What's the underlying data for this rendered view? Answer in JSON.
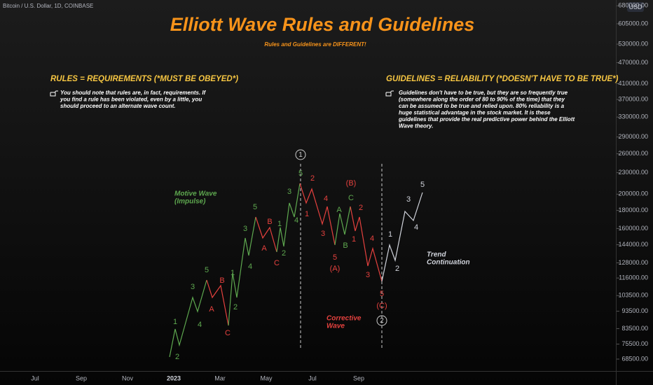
{
  "header": {
    "symbol": "Bitcoin / U.S. Dollar, 1D, COINBASE",
    "currency": "USD"
  },
  "chart_data": {
    "type": "line",
    "title": "Elliott Wave Rules and Guidelines",
    "subtitle": "Rules and Guidelines are DIFFERENT!",
    "categories": [
      "Jul",
      "Sep",
      "Nov",
      "2023",
      "Mar",
      "May",
      "Jul",
      "Sep"
    ],
    "log_scale": true,
    "ylim": [
      63400,
      706000
    ],
    "yticks": [
      {
        "value": 68500,
        "label": "68500.00"
      },
      {
        "value": 75500,
        "label": "75500.00"
      },
      {
        "value": 83500,
        "label": "83500.00"
      },
      {
        "value": 93500,
        "label": "93500.00"
      },
      {
        "value": 103500,
        "label": "103500.00"
      },
      {
        "value": 116000,
        "label": "116000.00"
      },
      {
        "value": 128000,
        "label": "128000.00"
      },
      {
        "value": 144000,
        "label": "144000.00"
      },
      {
        "value": 160000,
        "label": "160000.00"
      },
      {
        "value": 180000,
        "label": "180000.00"
      },
      {
        "value": 200000,
        "label": "200000.00"
      },
      {
        "value": 230000,
        "label": "230000.00"
      },
      {
        "value": 260000,
        "label": "260000.00"
      },
      {
        "value": 290000,
        "label": "290000.00"
      },
      {
        "value": 330000,
        "label": "330000.00"
      },
      {
        "value": 370000,
        "label": "370000.00"
      },
      {
        "value": 410000,
        "label": "410000.00"
      },
      {
        "value": 470000,
        "label": "470000.00"
      },
      {
        "value": 530000,
        "label": "530000.00"
      },
      {
        "value": 605000,
        "label": "605000.00"
      },
      {
        "value": 680000,
        "label": "680000.00"
      }
    ],
    "colors": {
      "motive": "#5ea84f",
      "corrective": "#e5413e",
      "continuation": "#d1d4dc"
    },
    "annotations": {
      "rules_heading": "RULES = REQUIREMENTS (*MUST BE OBEYED*)",
      "rules_text": [
        "You should note that rules are, in fact, requirements. If",
        "you find a rule has been violated, even by a little, you",
        "should proceed to an alternate wave count."
      ],
      "guidelines_heading": "GUIDELINES = RELIABILITY (*DOESN'T HAVE TO BE TRUE*)",
      "guidelines_text": [
        "Guidelines don't have to be true, but they are so frequently true",
        "(somewhere along the order of 80 to 90% of the time) that they",
        "can be assumed to be true and relied upon. 80% reliability is a",
        "huge statistical advantage in the stock market.  It is these",
        "guidelines that provide the real predictive power behind the Elliott",
        "Wave theory."
      ],
      "motive": [
        "Motive Wave",
        "(Impulse)"
      ],
      "corrective": [
        "Corrective",
        "Wave"
      ],
      "trend": [
        "Trend",
        "Continuation"
      ],
      "circle_1": "1",
      "circle_2": "2",
      "wave_labels": [
        "1",
        "2",
        "3",
        "4",
        "5",
        "A",
        "B",
        "C",
        "1",
        "2",
        "3",
        "4",
        "5",
        "A",
        "B",
        "C",
        "1",
        "2",
        "3",
        "4",
        "5",
        "1",
        "2",
        "3",
        "4",
        "5",
        "(A)",
        "A",
        "B",
        "C",
        "(B)",
        "1",
        "2",
        "3",
        "4",
        "5",
        "(C)",
        "1",
        "2",
        "3",
        "4",
        "5"
      ]
    }
  }
}
